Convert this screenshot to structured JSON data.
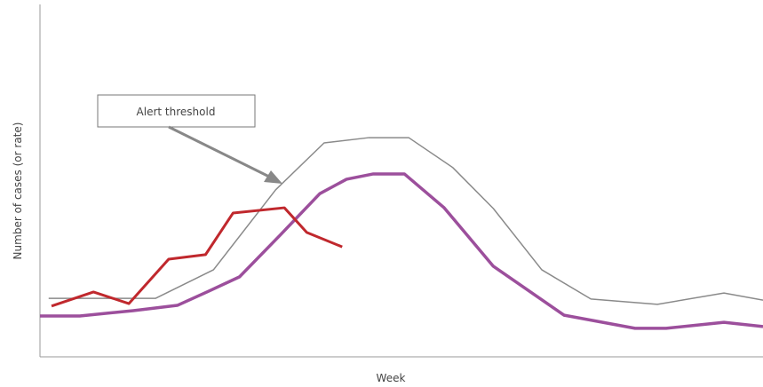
{
  "chart_data": {
    "type": "line",
    "xlabel": "Week",
    "ylabel": "Number of cases (or rate)",
    "annotation": "Alert threshold",
    "xlim": [
      0,
      100
    ],
    "ylim": [
      0,
      100
    ],
    "series": [
      {
        "name": "Alert threshold",
        "color": "#8a8a8a",
        "width": 1.5,
        "x": [
          1.2,
          6.8,
          16.0,
          24.0,
          32.6,
          39.3,
          45.5,
          51.0,
          57.1,
          62.7,
          69.4,
          76.2,
          85.4,
          94.6,
          100
        ],
        "values": [
          16.6,
          16.6,
          16.6,
          24.7,
          47.4,
          60.7,
          62.2,
          62.2,
          53.7,
          42.1,
          24.7,
          16.4,
          14.9,
          18.1,
          16.1
        ]
      },
      {
        "color": "#9c4f9c",
        "width": 3.5,
        "x": [
          0,
          5.5,
          12.9,
          19.0,
          23.3,
          27.6,
          33.2,
          38.7,
          42.4,
          46.1,
          50.4,
          55.9,
          62.7,
          72.5,
          82.3,
          86.6,
          94.6,
          100
        ],
        "values": [
          11.6,
          11.6,
          13.1,
          14.6,
          18.6,
          22.7,
          34.5,
          46.3,
          50.4,
          51.9,
          51.9,
          42.3,
          25.7,
          11.8,
          8.1,
          8.1,
          9.8,
          8.6
        ]
      },
      {
        "color": "#c0282d",
        "width": 3,
        "x": [
          1.6,
          7.4,
          12.3,
          17.8,
          22.9,
          26.7,
          33.8,
          36.9,
          41.8
        ],
        "values": [
          14.4,
          18.4,
          15.1,
          27.7,
          29.0,
          40.8,
          42.3,
          35.3,
          31.2
        ]
      }
    ]
  }
}
